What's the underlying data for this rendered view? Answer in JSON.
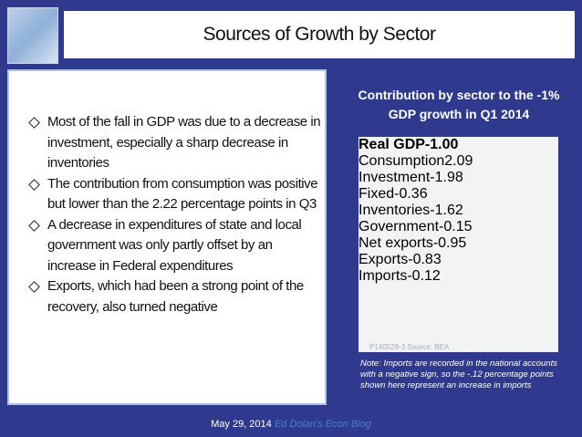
{
  "title": "Sources of Growth by Sector",
  "bullets": [
    "Most of the fall in GDP was due to a decrease in investment, especially a sharp decrease in inventories",
    "The contribution from consumption was positive but lower than the 2.22 percentage points in Q3",
    "A decrease in expenditures of state and local government was only partly offset by an increase in Federal expenditures",
    "Exports, which had been a strong point of the recovery, also turned negative"
  ],
  "table_heading": "Contribution by sector to the -1% GDP growth in Q1 2014",
  "table": {
    "rows": [
      [
        "Real GDP",
        "-1.00"
      ],
      [
        "Consumption",
        "2.09"
      ],
      [
        "Investment",
        "-1.98"
      ],
      [
        "Fixed",
        "-0.36"
      ],
      [
        "Inventories",
        "-1.62"
      ],
      [
        "Government",
        "-0.15"
      ],
      [
        "Net exports",
        "-0.95"
      ],
      [
        "Exports",
        "-0.83"
      ],
      [
        "Imports",
        "-0.12"
      ]
    ],
    "source": "P140529-3 Source: BEA"
  },
  "note": "Note: Imports are recorded in the national accounts with a negative sign, so the -.12 percentage points shown here represent an increase in imports",
  "footer": {
    "date": "May 29, 2014",
    "blog": "Ed Dolan's Econ Blog"
  }
}
